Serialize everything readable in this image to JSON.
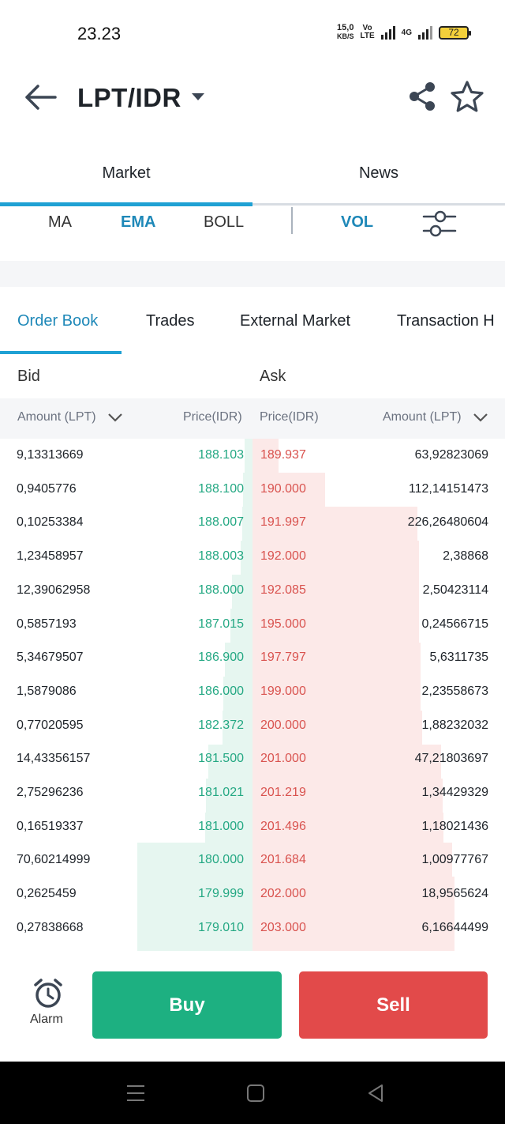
{
  "status_bar": {
    "time": "23.23",
    "net_speed_value": "15,0",
    "net_speed_unit": "KB/S",
    "volte_top": "Vo",
    "volte_bottom": "LTE",
    "network_type": "4G",
    "battery": "72"
  },
  "header": {
    "pair": "LPT/IDR"
  },
  "main_tabs": [
    {
      "label": "Market",
      "active": true
    },
    {
      "label": "News",
      "active": false
    }
  ],
  "indicators": {
    "ma": "MA",
    "ema": "EMA",
    "boll": "BOLL",
    "vol": "VOL"
  },
  "book_tabs": [
    {
      "label": "Order Book",
      "active": true
    },
    {
      "label": "Trades"
    },
    {
      "label": "External Market"
    },
    {
      "label": "Transaction H"
    }
  ],
  "order_book": {
    "bid_label": "Bid",
    "ask_label": "Ask",
    "headers": {
      "bid_amount": "Amount (LPT)",
      "bid_price": "Price(IDR)",
      "ask_price": "Price(IDR)",
      "ask_amount": "Amount (LPT)"
    },
    "rows": [
      {
        "bid_amount": "9,13313669",
        "bid_price": "188.103",
        "ask_price": "189.937",
        "ask_amount": "63,92823069"
      },
      {
        "bid_amount": "0,9405776",
        "bid_price": "188.100",
        "ask_price": "190.000",
        "ask_amount": "112,14151473"
      },
      {
        "bid_amount": "0,10253384",
        "bid_price": "188.007",
        "ask_price": "191.997",
        "ask_amount": "226,26480604"
      },
      {
        "bid_amount": "1,23458957",
        "bid_price": "188.003",
        "ask_price": "192.000",
        "ask_amount": "2,38868"
      },
      {
        "bid_amount": "12,39062958",
        "bid_price": "188.000",
        "ask_price": "192.085",
        "ask_amount": "2,50423114"
      },
      {
        "bid_amount": "0,5857193",
        "bid_price": "187.015",
        "ask_price": "195.000",
        "ask_amount": "0,24566715"
      },
      {
        "bid_amount": "5,34679507",
        "bid_price": "186.900",
        "ask_price": "197.797",
        "ask_amount": "5,6311735"
      },
      {
        "bid_amount": "1,5879086",
        "bid_price": "186.000",
        "ask_price": "199.000",
        "ask_amount": "2,23558673"
      },
      {
        "bid_amount": "0,77020595",
        "bid_price": "182.372",
        "ask_price": "200.000",
        "ask_amount": "1,88232032"
      },
      {
        "bid_amount": "14,43356157",
        "bid_price": "181.500",
        "ask_price": "201.000",
        "ask_amount": "47,21803697"
      },
      {
        "bid_amount": "2,75296236",
        "bid_price": "181.021",
        "ask_price": "201.219",
        "ask_amount": "1,34429329"
      },
      {
        "bid_amount": "0,16519337",
        "bid_price": "181.000",
        "ask_price": "201.496",
        "ask_amount": "1,18021436"
      },
      {
        "bid_amount": "70,60214999",
        "bid_price": "180.000",
        "ask_price": "201.684",
        "ask_amount": "1,00977767"
      },
      {
        "bid_amount": "0,2625459",
        "bid_price": "179.999",
        "ask_price": "202.000",
        "ask_amount": "18,9565624"
      },
      {
        "bid_amount": "0,27838668",
        "bid_price": "179.010",
        "ask_price": "203.000",
        "ask_amount": "6,16644499"
      }
    ]
  },
  "bottom": {
    "alarm_label": "Alarm",
    "buy_label": "Buy",
    "sell_label": "Sell"
  },
  "colors": {
    "accent": "#1fa1d4",
    "bid_green": "#24a883",
    "ask_red": "#d9534f",
    "buy_button": "#1db081",
    "sell_button": "#e24a4a",
    "bid_depth": "#e6f6f0",
    "ask_depth": "#fce9e8"
  }
}
